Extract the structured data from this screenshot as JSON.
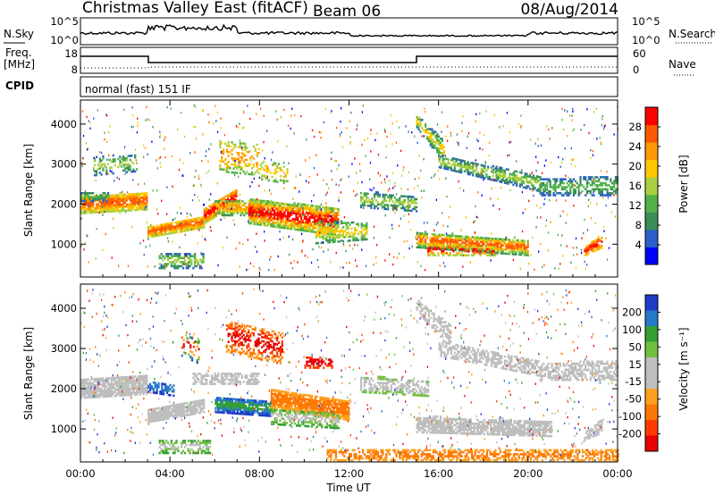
{
  "header": {
    "radar_title": "Christmas Valley East (fitACF)",
    "beam": "Beam 06",
    "date": "08/Aug/2014"
  },
  "panels": {
    "nsky_label": "N.Sky",
    "nsearch_label": "N.Search",
    "freq_label_top": "Freq.",
    "freq_label_unit": "[MHz]",
    "nave_label": "Nave",
    "cpid_label": "CPID",
    "cpid_value": "normal (fast) 151 IF",
    "noise_ticks": [
      "10^5",
      "10^0"
    ],
    "noise_ticks_right": [
      "10^5",
      "10^0"
    ],
    "freq_ticks": [
      "18",
      "8"
    ],
    "nave_ticks": [
      "60",
      "0"
    ]
  },
  "colors": {
    "power_scale": [
      "#0000ff",
      "#2b5fc8",
      "#3c8c58",
      "#52b24a",
      "#a8d040",
      "#ffc800",
      "#ff9a00",
      "#ff5a00",
      "#ff0000"
    ],
    "velocity_scale": [
      "#1e3cc8",
      "#2878c8",
      "#33a033",
      "#70c040",
      "#bebebe",
      "#bebebe",
      "#ffa020",
      "#ff7800",
      "#ff3c00",
      "#e60000"
    ]
  },
  "chart_data": [
    {
      "type": "heatmap",
      "name": "power-panel",
      "ylabel": "Slant Range [km]",
      "x_ticks": [
        "00:00",
        "04:00",
        "08:00",
        "12:00",
        "16:00",
        "20:00",
        "00:00"
      ],
      "xlim_hours": [
        0,
        24
      ],
      "y_ticks": [
        1000,
        2000,
        3000,
        4000
      ],
      "ylim": [
        180,
        4600
      ],
      "colorbar_label": "Power [dB]",
      "colorbar_ticks": [
        4,
        8,
        12,
        16,
        20,
        24,
        28
      ],
      "colorbar_range": [
        0,
        32
      ]
    },
    {
      "type": "heatmap",
      "name": "velocity-panel",
      "ylabel": "Slant Range [km]",
      "xlabel": "Time UT",
      "x_ticks": [
        "00:00",
        "04:00",
        "08:00",
        "12:00",
        "16:00",
        "20:00",
        "00:00"
      ],
      "xlim_hours": [
        0,
        24
      ],
      "y_ticks": [
        1000,
        2000,
        3000,
        4000
      ],
      "ylim": [
        180,
        4600
      ],
      "colorbar_label": "Velocity [m s⁻¹]",
      "colorbar_ticks": [
        200,
        100,
        50,
        15,
        -15,
        -50,
        -100,
        -200
      ]
    }
  ]
}
